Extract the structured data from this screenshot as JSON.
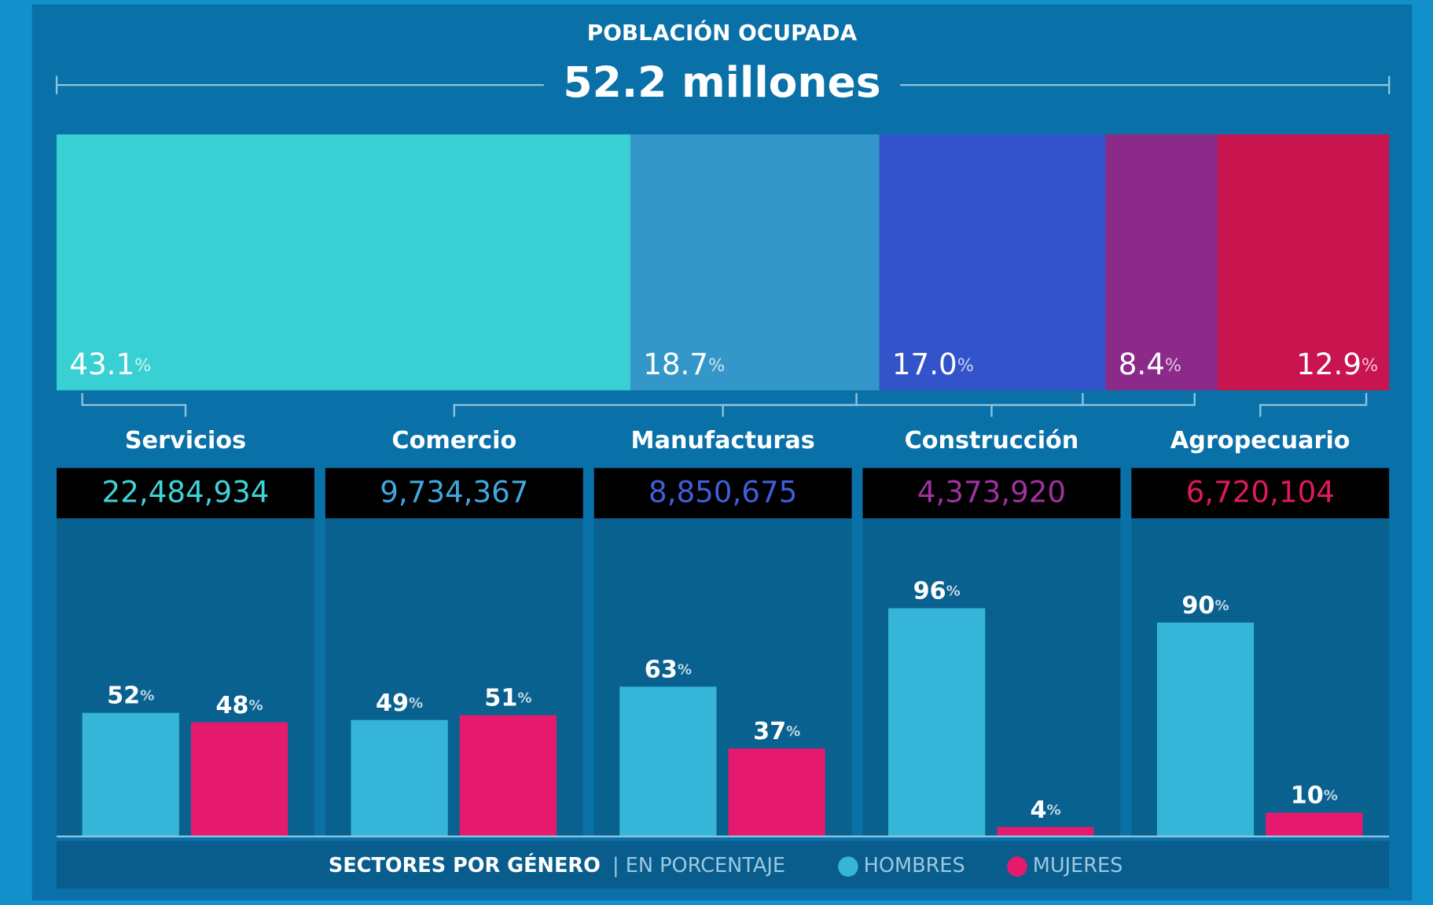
{
  "chart_data": [
    {
      "type": "share_bar",
      "title": "POBLACIÓN OCUPADA",
      "subtitle": "52.2 millones",
      "categories": [
        "Servicios",
        "Comercio",
        "Manufacturas",
        "Construcción",
        "Agropecuario"
      ],
      "values": [
        43.1,
        18.7,
        17.0,
        8.4,
        12.9
      ],
      "value_labels": [
        "43.1%",
        "18.7%",
        "17.0%",
        "8.4%",
        "12.9%"
      ],
      "colors": [
        "#39d0d3",
        "#3497c9",
        "#3253c9",
        "#8c2a8a",
        "#c8154f"
      ],
      "counts": [
        22484934,
        9734367,
        8850675,
        4373920,
        6720104
      ],
      "count_labels": [
        "22,484,934",
        "9,734,367",
        "8,850,675",
        "4,373,920",
        "6,720,104"
      ],
      "count_colors": [
        "#3fd3d8",
        "#3fa9df",
        "#3f5fdb",
        "#a032a0",
        "#e0195a"
      ]
    },
    {
      "type": "grouped_bar",
      "title": "SECTORES POR GÉNERO",
      "subtitle": "| EN PORCENTAJE",
      "ylim": [
        0,
        100
      ],
      "series": [
        {
          "name": "HOMBRES",
          "color": "#35b6d8",
          "values": [
            52,
            49,
            63,
            96,
            90
          ],
          "value_labels": [
            "52%",
            "49%",
            "63%",
            "96%",
            "90%"
          ]
        },
        {
          "name": "MUJERES",
          "color": "#e51a6e",
          "values": [
            48,
            51,
            37,
            4,
            10
          ],
          "value_labels": [
            "48%",
            "51%",
            "37%",
            "4%",
            "10%"
          ]
        }
      ]
    }
  ]
}
